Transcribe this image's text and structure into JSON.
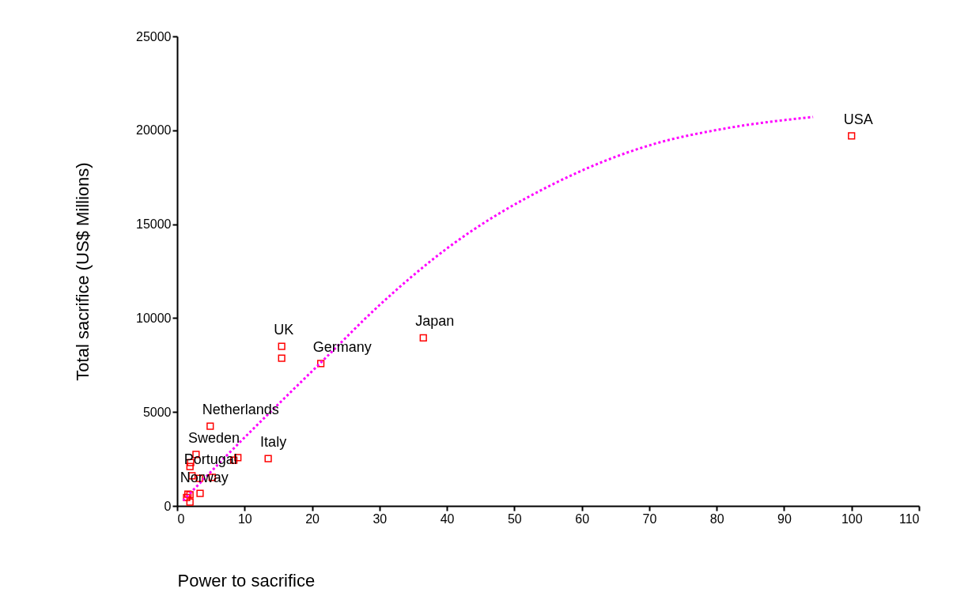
{
  "chart_data": {
    "type": "scatter",
    "xlabel": "Power to sacrifice",
    "ylabel": "Total sacrifice (US$ Millions)",
    "xlim": [
      0,
      110
    ],
    "xticks": [
      0,
      10,
      20,
      30,
      40,
      50,
      60,
      70,
      80,
      90,
      100,
      110
    ],
    "ylim": [
      0,
      25000
    ],
    "yticks": [
      0,
      5000,
      10000,
      15000,
      20000,
      25000
    ],
    "grid": false,
    "legend": false,
    "series": [
      {
        "type": "scatter",
        "color": "#ff0000",
        "marker": "square",
        "x": [
          100,
          36.5,
          15.5,
          15.5,
          21.3,
          13.5,
          9.0,
          8.4,
          4.9,
          2.8,
          2.0,
          1.9,
          2.2,
          5.2,
          3.3,
          3.4,
          1.9,
          1.6,
          1.9,
          1.4
        ],
        "values": [
          19700,
          8950,
          8500,
          7870,
          7580,
          2520,
          2570,
          2440,
          4250,
          2740,
          2310,
          2100,
          1600,
          1520,
          1470,
          670,
          590,
          630,
          210,
          450
        ]
      },
      {
        "type": "line",
        "color": "#ff00ff",
        "line_style": "dotted",
        "marker": "none",
        "x": [
          0.9,
          6.9,
          21.5,
          30.0,
          40.2,
          55.5,
          70.8,
          81.0,
          94.3
        ],
        "values": [
          290,
          2520,
          7700,
          10690,
          13760,
          17090,
          19280,
          20080,
          20710
        ]
      }
    ],
    "annotations": [
      {
        "text": "USA",
        "x": 100,
        "y": 19700
      },
      {
        "text": "Japan",
        "x": 36.5,
        "y": 8950
      },
      {
        "text": "UK",
        "x": 15.5,
        "y": 8500
      },
      {
        "text": "Germany",
        "x": 21.3,
        "y": 7580
      },
      {
        "text": "Italy",
        "x": 13.5,
        "y": 2520
      },
      {
        "text": "Netherlands",
        "x": 4.9,
        "y": 4250
      },
      {
        "text": "Sweden",
        "x": 2.8,
        "y": 2740
      },
      {
        "text": "Portugal",
        "x": 2.2,
        "y": 1600
      },
      {
        "text": "Norway",
        "x": 1.6,
        "y": 630
      }
    ]
  }
}
